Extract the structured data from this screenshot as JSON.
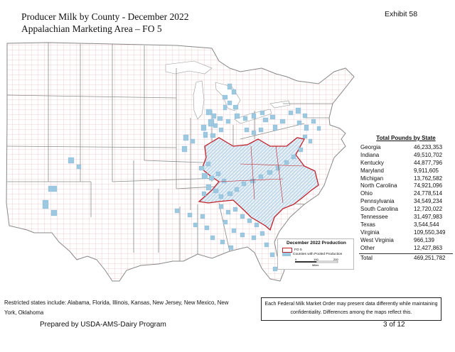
{
  "header": {
    "title_line1": "Producer Milk by County - December 2022",
    "title_line2": "Appalachian Marketing Area – FO 5",
    "exhibit": "Exhibit 58"
  },
  "table": {
    "heading": "Total Pounds by State",
    "rows": [
      {
        "state": "Georgia",
        "value": "46,233,353"
      },
      {
        "state": "Indiana",
        "value": "49,510,702"
      },
      {
        "state": "Kentucky",
        "value": "44,877,796"
      },
      {
        "state": "Maryland",
        "value": "9,911,605"
      },
      {
        "state": "Michigan",
        "value": "13,762,582"
      },
      {
        "state": "North Carolina",
        "value": "74,921,096"
      },
      {
        "state": "Ohio",
        "value": "24,778,514"
      },
      {
        "state": "Pennsylvania",
        "value": "34,549,234"
      },
      {
        "state": "South Carolina",
        "value": "12,720,022"
      },
      {
        "state": "Tennessee",
        "value": "31,497,983"
      },
      {
        "state": "Texas",
        "value": "3,544,544"
      },
      {
        "state": "Virginia",
        "value": "109,550,349"
      },
      {
        "state": "West Virginia",
        "value": "966,139"
      },
      {
        "state": "Other",
        "value": "12,427,863"
      }
    ],
    "total_label": "Total",
    "total_value": "469,251,782"
  },
  "legend": {
    "title": "December 2022 Production",
    "fo_label": "FO 5",
    "counties_label": "Counties with Pooled Production",
    "scale_ticks": [
      "0",
      "100",
      "200"
    ],
    "scale_unit": "Miles",
    "colors": {
      "fo_outline": "#c0202a",
      "counties": "#9cc8e0"
    }
  },
  "footer": {
    "restricted": "Restricted states include: Alabama, Florida, Illinois, Kansas, New Jersey, New Mexico, New York, Oklahoma",
    "note": "Each Federal Milk Market Order may present data differently while maintaining confidentiality. Differences among the maps reflect this.",
    "prepared_by": "Prepared by USDA-AMS-Dairy Program",
    "page": "3 of 12"
  }
}
